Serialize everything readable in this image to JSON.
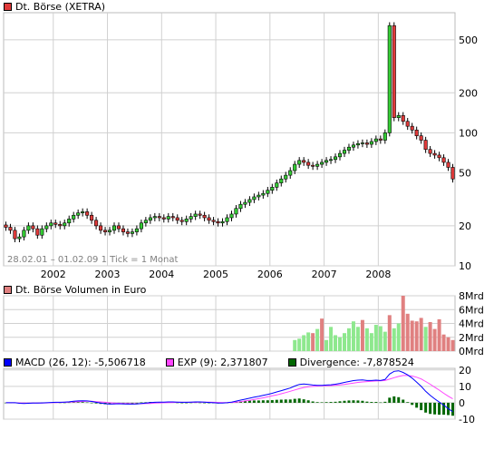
{
  "colors": {
    "up": "#33cc33",
    "down": "#e03a3a",
    "volume_up": "#8ee88e",
    "volume_down": "#e08080",
    "macd": "#0000ff",
    "exp": "#ff44ff",
    "divergence": "#006600",
    "grid": "#d0d0d0"
  },
  "chart_data": [
    {
      "type": "candlestick",
      "title": "Dt. Börse (XETRA)",
      "range_label": "28.02.01 – 01.02.09",
      "tick_label": "1 Tick = 1 Monat",
      "x_tick_labels": [
        "2002",
        "2003",
        "2004",
        "2005",
        "2006",
        "2007",
        "2008"
      ],
      "y_scale": "log",
      "ylim": [
        10,
        800
      ],
      "y_tick_labels": [
        "500",
        "200",
        "100",
        "50",
        "20",
        "10"
      ],
      "y_ticks": [
        500,
        200,
        100,
        50,
        20,
        10
      ],
      "start": "2001-02",
      "interval": "month",
      "close": [
        19.5,
        18.5,
        16,
        16.5,
        18.5,
        20,
        19,
        17,
        19,
        20,
        21,
        20.5,
        20,
        21,
        22.5,
        24,
        25,
        25.5,
        24,
        22,
        20,
        18.5,
        18,
        18.5,
        20,
        19,
        18,
        17.5,
        18,
        19,
        21,
        22,
        23,
        23.5,
        23,
        22.5,
        23.5,
        23,
        22,
        21.5,
        22.5,
        23.5,
        24.5,
        24,
        23,
        22,
        21.5,
        21,
        21.5,
        23,
        24.5,
        27,
        29,
        30,
        31.5,
        33,
        34,
        35,
        37,
        39,
        42,
        45,
        48,
        52,
        58,
        62,
        60,
        57,
        56,
        58,
        60,
        62,
        63,
        66,
        70,
        74,
        78,
        81,
        83,
        84,
        82,
        86,
        90,
        88,
        100,
        640,
        130,
        135,
        122,
        112,
        105,
        95,
        88,
        75,
        70,
        68,
        65,
        60,
        55,
        45
      ],
      "ohlc_note": "",
      "series_name": ""
    },
    {
      "type": "bar",
      "title": "Dt. Börse Volumen in Euro",
      "y_tick_labels": [
        "8Mrd",
        "6Mrd",
        "4Mrd",
        "2Mrd",
        "0Mrd"
      ],
      "y_ticks": [
        8,
        6,
        4,
        2,
        0
      ],
      "ylim": [
        0,
        8
      ],
      "unit": "Mrd",
      "start": "2006-06",
      "values": [
        1.6,
        1.8,
        2.3,
        2.7,
        2.6,
        3.2,
        4.7,
        1.6,
        3.5,
        2.3,
        2.0,
        2.6,
        3.3,
        4.3,
        3.5,
        4.5,
        3.3,
        2.6,
        3.8,
        3.6,
        2.8,
        5.2,
        3.3,
        4.0,
        8.0,
        5.4,
        4.4,
        4.3,
        4.8,
        3.5,
        4.2,
        3.2,
        4.6,
        2.4,
        2.0,
        1.6
      ],
      "directions": [
        "up",
        "up",
        "up",
        "up",
        "down",
        "up",
        "down",
        "up",
        "up",
        "up",
        "up",
        "up",
        "up",
        "up",
        "up",
        "down",
        "up",
        "up",
        "up",
        "up",
        "up",
        "down",
        "up",
        "up",
        "down",
        "down",
        "down",
        "down",
        "down",
        "up",
        "down",
        "down",
        "down",
        "down",
        "down",
        "down"
      ]
    },
    {
      "type": "line",
      "legend": [
        {
          "label": "MACD (26, 12): -5,506718",
          "color": "#0000ff"
        },
        {
          "label": "EXP (9): 2,371807",
          "color": "#ff44ff"
        },
        {
          "label": "Divergence: -7,878524",
          "color": "#006600"
        }
      ],
      "y_tick_labels": [
        "20",
        "10",
        "0",
        "-10"
      ],
      "y_ticks": [
        20,
        10,
        0,
        -10
      ],
      "ylim": [
        -10,
        21
      ],
      "macd": [
        0,
        0,
        0,
        -0.3,
        -0.4,
        -0.3,
        -0.2,
        -0.2,
        -0.1,
        0,
        0.2,
        0.3,
        0.3,
        0.4,
        0.6,
        0.9,
        1.1,
        1.2,
        1.1,
        0.8,
        0.3,
        -0.2,
        -0.6,
        -0.8,
        -0.7,
        -0.6,
        -0.7,
        -0.8,
        -0.8,
        -0.7,
        -0.4,
        -0.2,
        0.1,
        0.3,
        0.4,
        0.4,
        0.5,
        0.5,
        0.4,
        0.3,
        0.3,
        0.4,
        0.5,
        0.5,
        0.4,
        0.2,
        0,
        -0.2,
        -0.2,
        0,
        0.4,
        1,
        1.6,
        2.2,
        2.8,
        3.4,
        3.9,
        4.5,
        5.1,
        5.8,
        6.6,
        7.4,
        8.2,
        9.0,
        10.2,
        11.2,
        11.4,
        11.2,
        10.8,
        10.6,
        10.6,
        10.8,
        11,
        11.3,
        11.8,
        12.4,
        13,
        13.5,
        13.8,
        13.9,
        13.6,
        13.6,
        13.8,
        13.6,
        14.2,
        17.5,
        19.2,
        19.5,
        18.5,
        17,
        15,
        12.6,
        10,
        7.0,
        4.5,
        2.4,
        0.4,
        -1.5,
        -3.5,
        -5.5
      ],
      "exp": [
        0,
        0,
        0,
        -0.1,
        -0.2,
        -0.2,
        -0.2,
        -0.2,
        -0.2,
        -0.1,
        0,
        0.1,
        0.2,
        0.3,
        0.4,
        0.5,
        0.7,
        0.8,
        0.9,
        0.9,
        0.7,
        0.5,
        0.3,
        0,
        -0.2,
        -0.3,
        -0.4,
        -0.5,
        -0.6,
        -0.6,
        -0.6,
        -0.5,
        -0.4,
        -0.2,
        -0.1,
        0,
        0.1,
        0.2,
        0.3,
        0.3,
        0.3,
        0.3,
        0.3,
        0.4,
        0.4,
        0.4,
        0.3,
        0.2,
        0.1,
        0.1,
        0.2,
        0.4,
        0.7,
        1.1,
        1.5,
        2,
        2.5,
        3,
        3.6,
        4.2,
        4.8,
        5.5,
        6.2,
        7,
        7.8,
        8.6,
        9.3,
        9.7,
        10,
        10.2,
        10.3,
        10.4,
        10.5,
        10.7,
        10.9,
        11.2,
        11.6,
        12,
        12.4,
        12.7,
        12.9,
        13.1,
        13.3,
        13.4,
        13.6,
        14.4,
        15.3,
        16.1,
        16.6,
        16.6,
        16.3,
        15.6,
        14.5,
        13,
        11.3,
        9.5,
        7.7,
        5.8,
        4,
        2.4
      ]
    }
  ]
}
